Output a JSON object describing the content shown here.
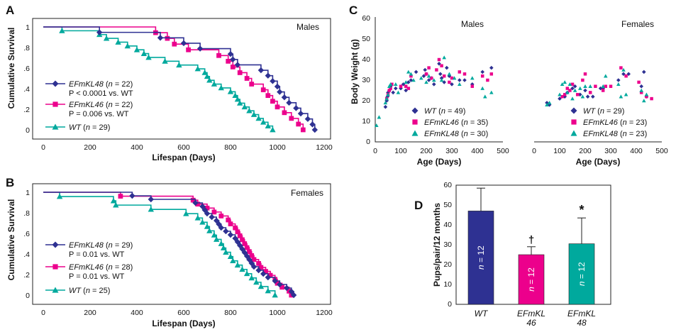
{
  "panels": {
    "A": {
      "letter": "A",
      "subtitle": "Males",
      "xlabel": "Lifespan (Days)",
      "ylabel": "Cumulative Survival",
      "xticks": [
        "0",
        "200",
        "400",
        "600",
        "800",
        "1000",
        "1200"
      ],
      "yticks": [
        "0",
        ".2",
        ".4",
        ".6",
        ".8",
        "1"
      ],
      "legend": [
        {
          "name": "EFmKL48",
          "n": "22",
          "stat": "P < 0.0001 vs. WT"
        },
        {
          "name": "EFmKL46",
          "n": "22",
          "stat": "P = 0.006 vs. WT"
        },
        {
          "name": "WT",
          "n": "29",
          "stat": ""
        }
      ]
    },
    "B": {
      "letter": "B",
      "subtitle": "Females",
      "xlabel": "Lifespan (Days)",
      "ylabel": "Cumulative Survival",
      "xticks": [
        "0",
        "200",
        "400",
        "600",
        "800",
        "1000",
        "1200"
      ],
      "yticks": [
        "0",
        ".2",
        ".4",
        ".6",
        ".8",
        "1"
      ],
      "legend": [
        {
          "name": "EFmKL48",
          "n": "29",
          "stat": "P = 0.01 vs. WT"
        },
        {
          "name": "EFmKL46",
          "n": "28",
          "stat": "P = 0.01 vs. WT"
        },
        {
          "name": "WT",
          "n": "25",
          "stat": ""
        }
      ]
    },
    "C": {
      "letter": "C",
      "ylabel": "Body Weight (g)",
      "xlabel": "Age (Days)",
      "left_subtitle": "Males",
      "right_subtitle": "Females",
      "xticks": [
        "0",
        "100",
        "200",
        "300",
        "400",
        "500"
      ],
      "yticks": [
        "0",
        "10",
        "20",
        "30",
        "40",
        "50",
        "60"
      ],
      "legend_left": [
        {
          "name": "WT",
          "n": "49"
        },
        {
          "name": "EFmKL46",
          "n": "35"
        },
        {
          "name": "EFmKL48",
          "n": "30"
        }
      ],
      "legend_right": [
        {
          "name": "WT",
          "n": "29"
        },
        {
          "name": "EFmKL46",
          "n": "23"
        },
        {
          "name": "EFmKL48",
          "n": "23"
        }
      ]
    },
    "D": {
      "letter": "D",
      "ylabel": "Pups/pair/12 months",
      "yticks": [
        "0",
        "10",
        "20",
        "30",
        "40",
        "50",
        "60"
      ],
      "bar_labels": [
        "WT",
        "EFmKL\n46",
        "EFmKL\n48"
      ],
      "n_text": "n = 12",
      "markers": [
        "",
        "†",
        "*"
      ]
    }
  },
  "colors": {
    "efmkl48": "#2e3192",
    "efmkl46": "#ec008c",
    "wt": "#00a99d"
  },
  "chart_data": [
    {
      "panel": "A",
      "type": "line",
      "step": true,
      "xlabel": "Lifespan (Days)",
      "ylabel": "Cumulative Survival",
      "xlim": [
        0,
        1200
      ],
      "ylim": [
        0,
        1
      ],
      "series": [
        {
          "name": "EFmKL48",
          "color": "#2e3192",
          "marker": "diamond",
          "events": [
            240,
            500,
            600,
            670,
            800,
            810,
            830,
            930,
            960,
            980,
            1000,
            1010,
            1030,
            1050,
            1080,
            1100,
            1130,
            1150,
            1160
          ]
        },
        {
          "name": "EFmKL46",
          "color": "#ec008c",
          "marker": "square",
          "events": [
            480,
            530,
            560,
            620,
            750,
            790,
            810,
            840,
            870,
            890,
            940,
            960,
            980,
            1000,
            1030,
            1060,
            1090,
            1110
          ]
        },
        {
          "name": "WT",
          "color": "#00a99d",
          "marker": "triangle",
          "events": [
            80,
            240,
            270,
            320,
            360,
            400,
            430,
            450,
            520,
            580,
            660,
            690,
            700,
            710,
            730,
            760,
            800,
            820,
            830,
            840,
            860,
            880,
            900,
            920,
            940,
            960,
            980
          ]
        }
      ]
    },
    {
      "panel": "B",
      "type": "line",
      "step": true,
      "xlabel": "Lifespan (Days)",
      "ylabel": "Cumulative Survival",
      "xlim": [
        0,
        1200
      ],
      "ylim": [
        0,
        1
      ],
      "series": [
        {
          "name": "EFmKL48",
          "color": "#2e3192",
          "marker": "diamond",
          "events": [
            380,
            460,
            650,
            680,
            690,
            700,
            720,
            740,
            750,
            760,
            780,
            800,
            820,
            830,
            840,
            850,
            860,
            870,
            880,
            890,
            900,
            920,
            940,
            960,
            990,
            1010,
            1040,
            1060,
            1070
          ]
        },
        {
          "name": "EFmKL46",
          "color": "#ec008c",
          "marker": "square",
          "events": [
            330,
            640,
            660,
            700,
            730,
            760,
            790,
            800,
            820,
            830,
            840,
            850,
            860,
            870,
            880,
            890,
            900,
            920,
            930,
            950,
            970,
            990,
            1000,
            1020,
            1050,
            1060
          ]
        },
        {
          "name": "WT",
          "color": "#00a99d",
          "marker": "triangle",
          "events": [
            70,
            300,
            310,
            460,
            610,
            660,
            680,
            700,
            710,
            730,
            740,
            760,
            770,
            780,
            800,
            810,
            830,
            850,
            870,
            890,
            910,
            930,
            960,
            990
          ]
        }
      ]
    },
    {
      "panel": "C-males",
      "type": "scatter",
      "xlabel": "Age (Days)",
      "ylabel": "Body Weight (g)",
      "xlim": [
        0,
        500
      ],
      "ylim": [
        0,
        60
      ],
      "series": [
        {
          "name": "WT",
          "color": "#2e3192",
          "marker": "diamond",
          "points": [
            [
              40,
              17
            ],
            [
              45,
              20
            ],
            [
              48,
              22
            ],
            [
              50,
              24
            ],
            [
              55,
              25
            ],
            [
              60,
              27
            ],
            [
              70,
              24
            ],
            [
              80,
              26
            ],
            [
              100,
              26
            ],
            [
              110,
              28
            ],
            [
              120,
              25
            ],
            [
              130,
              29
            ],
            [
              140,
              30
            ],
            [
              160,
              34
            ],
            [
              190,
              32
            ],
            [
              195,
              35
            ],
            [
              200,
              33
            ],
            [
              210,
              30
            ],
            [
              220,
              31
            ],
            [
              230,
              28
            ],
            [
              250,
              38
            ],
            [
              255,
              33
            ],
            [
              260,
              31
            ],
            [
              270,
              29
            ],
            [
              280,
              36
            ],
            [
              290,
              32
            ],
            [
              300,
              28
            ],
            [
              330,
              30
            ],
            [
              350,
              30
            ],
            [
              380,
              28
            ],
            [
              420,
              34
            ],
            [
              455,
              36
            ]
          ]
        },
        {
          "name": "EFmKL46",
          "color": "#ec008c",
          "marker": "square",
          "points": [
            [
              45,
              21
            ],
            [
              50,
              23
            ],
            [
              55,
              25
            ],
            [
              60,
              26
            ],
            [
              65,
              28
            ],
            [
              100,
              27
            ],
            [
              120,
              27
            ],
            [
              130,
              26
            ],
            [
              140,
              32
            ],
            [
              200,
              33
            ],
            [
              210,
              36
            ],
            [
              220,
              31
            ],
            [
              240,
              35
            ],
            [
              250,
              40
            ],
            [
              260,
              37
            ],
            [
              270,
              32
            ],
            [
              290,
              29
            ],
            [
              300,
              31
            ],
            [
              330,
              34
            ],
            [
              350,
              33
            ],
            [
              380,
              27
            ],
            [
              420,
              32
            ],
            [
              440,
              30
            ],
            [
              455,
              33
            ]
          ]
        },
        {
          "name": "EFmKL48",
          "color": "#00a99d",
          "marker": "triangle",
          "points": [
            [
              5,
              8
            ],
            [
              15,
              12
            ],
            [
              40,
              19
            ],
            [
              45,
              21
            ],
            [
              50,
              23
            ],
            [
              55,
              27
            ],
            [
              60,
              28
            ],
            [
              80,
              28
            ],
            [
              90,
              24
            ],
            [
              120,
              29
            ],
            [
              130,
              34
            ],
            [
              140,
              33
            ],
            [
              150,
              30
            ],
            [
              180,
              31
            ],
            [
              200,
              29
            ],
            [
              210,
              32
            ],
            [
              230,
              30
            ],
            [
              260,
              30
            ],
            [
              270,
              41
            ],
            [
              290,
              33
            ],
            [
              310,
              31
            ],
            [
              330,
              28
            ],
            [
              380,
              31
            ],
            [
              420,
              26
            ],
            [
              430,
              22
            ],
            [
              455,
              24
            ]
          ]
        }
      ]
    },
    {
      "panel": "C-females",
      "type": "scatter",
      "xlabel": "Age (Days)",
      "ylabel": "Body Weight (g)",
      "xlim": [
        0,
        500
      ],
      "ylim": [
        0,
        60
      ],
      "series": [
        {
          "name": "WT",
          "color": "#2e3192",
          "marker": "diamond",
          "points": [
            [
              50,
              19
            ],
            [
              60,
              18
            ],
            [
              100,
              21
            ],
            [
              120,
              22
            ],
            [
              130,
              24
            ],
            [
              150,
              26
            ],
            [
              160,
              27
            ],
            [
              180,
              23
            ],
            [
              200,
              25
            ],
            [
              210,
              22
            ],
            [
              230,
              22
            ],
            [
              260,
              26
            ],
            [
              270,
              26
            ],
            [
              330,
              30
            ],
            [
              350,
              33
            ],
            [
              370,
              33
            ],
            [
              420,
              27
            ],
            [
              430,
              34
            ],
            [
              440,
              22
            ]
          ]
        },
        {
          "name": "EFmKL46",
          "color": "#ec008c",
          "marker": "square",
          "points": [
            [
              110,
              22
            ],
            [
              120,
              23
            ],
            [
              130,
              26
            ],
            [
              140,
              25
            ],
            [
              150,
              28
            ],
            [
              170,
              23
            ],
            [
              190,
              30
            ],
            [
              200,
              33
            ],
            [
              220,
              24
            ],
            [
              240,
              27
            ],
            [
              270,
              25
            ],
            [
              280,
              27
            ],
            [
              300,
              27
            ],
            [
              340,
              36
            ],
            [
              360,
              32
            ],
            [
              410,
              29
            ],
            [
              420,
              24
            ],
            [
              440,
              22
            ],
            [
              460,
              21
            ]
          ]
        },
        {
          "name": "EFmKL48",
          "color": "#00a99d",
          "marker": "triangle",
          "points": [
            [
              50,
              18
            ],
            [
              60,
              19
            ],
            [
              100,
              23
            ],
            [
              110,
              28
            ],
            [
              120,
              29
            ],
            [
              130,
              24
            ],
            [
              140,
              28
            ],
            [
              150,
              21
            ],
            [
              160,
              25
            ],
            [
              180,
              26
            ],
            [
              190,
              22
            ],
            [
              200,
              27
            ],
            [
              220,
              27
            ],
            [
              270,
              27
            ],
            [
              280,
              32
            ],
            [
              330,
              28
            ],
            [
              340,
              22
            ],
            [
              350,
              35
            ],
            [
              360,
              23
            ],
            [
              420,
              25
            ],
            [
              430,
              20
            ],
            [
              440,
              23
            ]
          ]
        }
      ]
    },
    {
      "panel": "D",
      "type": "bar",
      "ylabel": "Pups/pair/12 months",
      "ylim": [
        0,
        60
      ],
      "categories": [
        "WT",
        "EFmKL 46",
        "EFmKL 48"
      ],
      "values": [
        47,
        25,
        30.5
      ],
      "errors": [
        11.5,
        4,
        13
      ],
      "colors": [
        "#2e3192",
        "#ec008c",
        "#00a99d"
      ]
    }
  ]
}
